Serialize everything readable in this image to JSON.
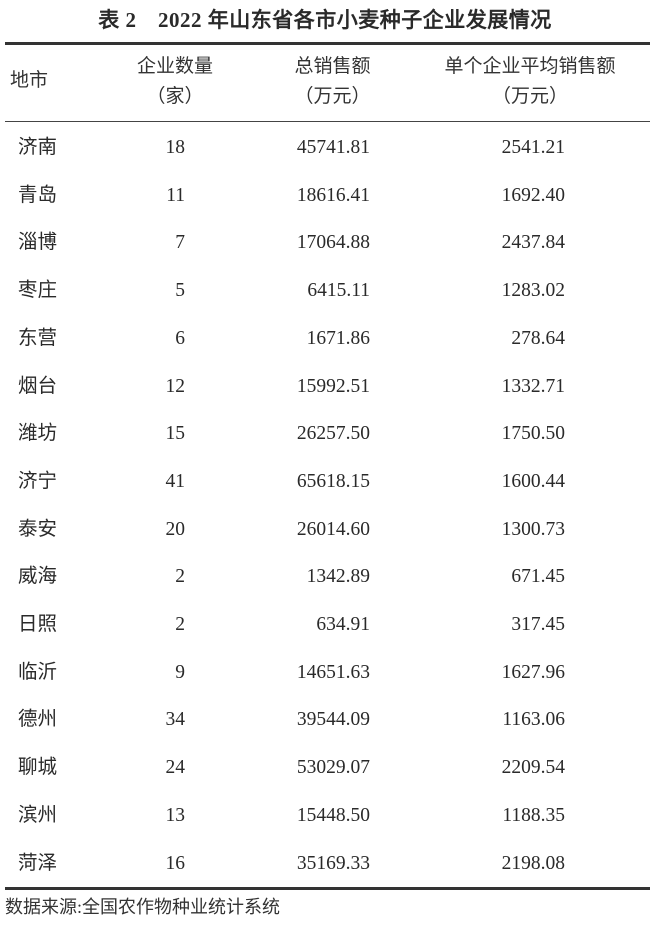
{
  "title": "表 2　2022 年山东省各市小麦种子企业发展情况",
  "headers": {
    "city": "地市",
    "count": "企业数量",
    "count_unit": "（家）",
    "total": "总销售额",
    "total_unit": "（万元）",
    "avg": "单个企业平均销售额",
    "avg_unit": "（万元）"
  },
  "rows": [
    {
      "city": "济南",
      "count": "18",
      "total": "45741.81",
      "avg": "2541.21"
    },
    {
      "city": "青岛",
      "count": "11",
      "total": "18616.41",
      "avg": "1692.40"
    },
    {
      "city": "淄博",
      "count": "7",
      "total": "17064.88",
      "avg": "2437.84"
    },
    {
      "city": "枣庄",
      "count": "5",
      "total": "6415.11",
      "avg": "1283.02"
    },
    {
      "city": "东营",
      "count": "6",
      "total": "1671.86",
      "avg": "278.64"
    },
    {
      "city": "烟台",
      "count": "12",
      "total": "15992.51",
      "avg": "1332.71"
    },
    {
      "city": "潍坊",
      "count": "15",
      "total": "26257.50",
      "avg": "1750.50"
    },
    {
      "city": "济宁",
      "count": "41",
      "total": "65618.15",
      "avg": "1600.44"
    },
    {
      "city": "泰安",
      "count": "20",
      "total": "26014.60",
      "avg": "1300.73"
    },
    {
      "city": "威海",
      "count": "2",
      "total": "1342.89",
      "avg": "671.45"
    },
    {
      "city": "日照",
      "count": "2",
      "total": "634.91",
      "avg": "317.45"
    },
    {
      "city": "临沂",
      "count": "9",
      "total": "14651.63",
      "avg": "1627.96"
    },
    {
      "city": "德州",
      "count": "34",
      "total": "39544.09",
      "avg": "1163.06"
    },
    {
      "city": "聊城",
      "count": "24",
      "total": "53029.07",
      "avg": "2209.54"
    },
    {
      "city": "滨州",
      "count": "13",
      "total": "15448.50",
      "avg": "1188.35"
    },
    {
      "city": "菏泽",
      "count": "16",
      "total": "35169.33",
      "avg": "2198.08"
    }
  ],
  "source": "数据来源:全国农作物种业统计系统"
}
